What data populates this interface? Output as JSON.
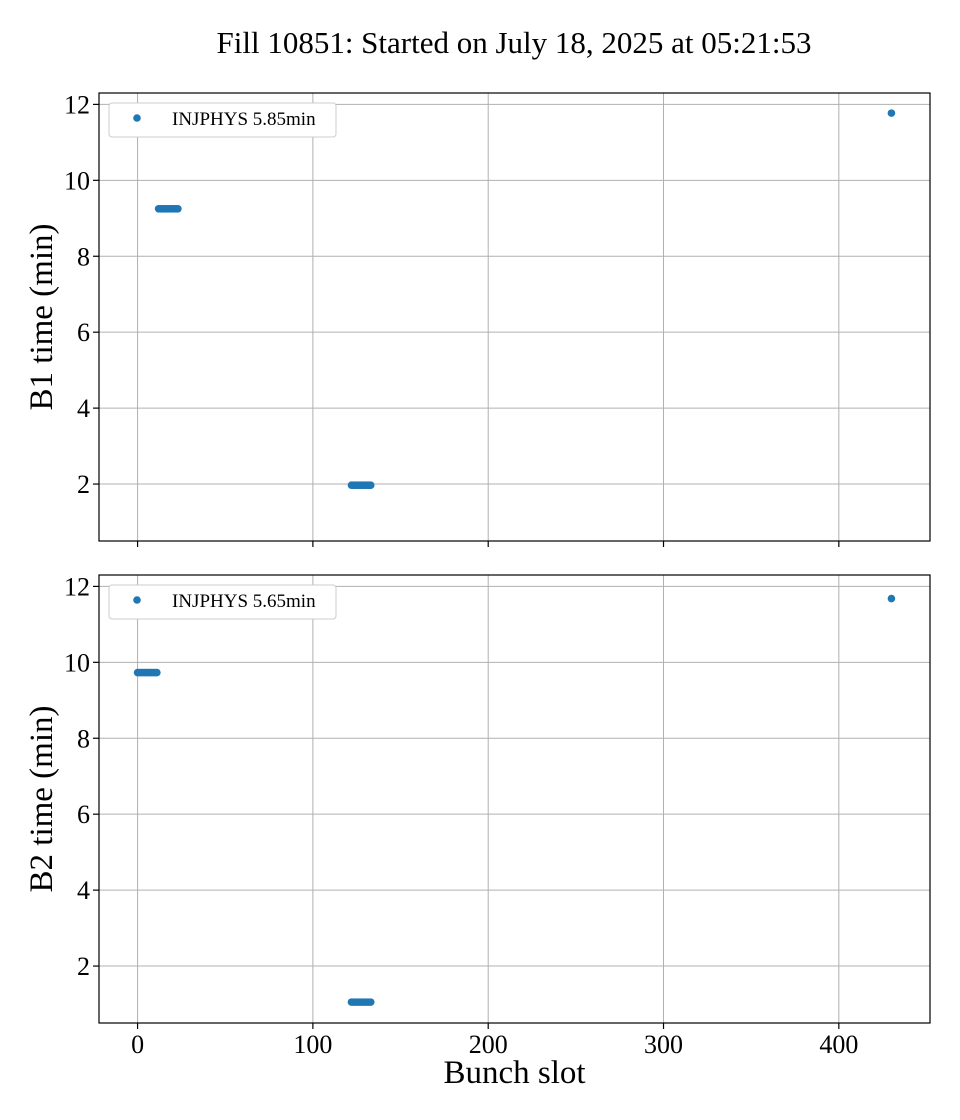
{
  "title": "Fill 10851: Started on July 18, 2025 at 05:21:53",
  "colors": {
    "series": "#1f77b4",
    "grid": "#b0b0b0",
    "frame": "#000000"
  },
  "chart_data": [
    {
      "type": "scatter",
      "ylabel": "B1 time (min)",
      "xlabel": "",
      "xlim": [
        -22,
        452
      ],
      "ylim": [
        0.5,
        12.3
      ],
      "xticks": [
        0,
        100,
        200,
        300,
        400
      ],
      "yticks": [
        2,
        4,
        6,
        8,
        10,
        12
      ],
      "show_xtick_labels": false,
      "grid": true,
      "legend_position": "top-left",
      "series": [
        {
          "name": "INJPHYS 5.85min",
          "color": "#1f77b4",
          "points": [
            [
              12,
              9.25
            ],
            [
              13,
              9.25
            ],
            [
              14,
              9.25
            ],
            [
              15,
              9.25
            ],
            [
              16,
              9.25
            ],
            [
              17,
              9.25
            ],
            [
              18,
              9.25
            ],
            [
              19,
              9.25
            ],
            [
              20,
              9.25
            ],
            [
              21,
              9.25
            ],
            [
              22,
              9.25
            ],
            [
              23,
              9.25
            ],
            [
              122,
              1.97
            ],
            [
              123,
              1.97
            ],
            [
              124,
              1.97
            ],
            [
              125,
              1.97
            ],
            [
              126,
              1.97
            ],
            [
              127,
              1.97
            ],
            [
              128,
              1.97
            ],
            [
              129,
              1.97
            ],
            [
              130,
              1.97
            ],
            [
              131,
              1.97
            ],
            [
              132,
              1.97
            ],
            [
              133,
              1.97
            ],
            [
              430,
              11.77
            ]
          ]
        }
      ]
    },
    {
      "type": "scatter",
      "ylabel": "B2 time (min)",
      "xlabel": "Bunch slot",
      "xlim": [
        -22,
        452
      ],
      "ylim": [
        0.5,
        12.3
      ],
      "xticks": [
        0,
        100,
        200,
        300,
        400
      ],
      "yticks": [
        2,
        4,
        6,
        8,
        10,
        12
      ],
      "show_xtick_labels": true,
      "grid": true,
      "legend_position": "top-left",
      "series": [
        {
          "name": "INJPHYS 5.65min",
          "color": "#1f77b4",
          "points": [
            [
              0,
              9.73
            ],
            [
              1,
              9.73
            ],
            [
              2,
              9.73
            ],
            [
              3,
              9.73
            ],
            [
              4,
              9.73
            ],
            [
              5,
              9.73
            ],
            [
              6,
              9.73
            ],
            [
              7,
              9.73
            ],
            [
              8,
              9.73
            ],
            [
              9,
              9.73
            ],
            [
              10,
              9.73
            ],
            [
              11,
              9.73
            ],
            [
              122,
              1.05
            ],
            [
              123,
              1.05
            ],
            [
              124,
              1.05
            ],
            [
              125,
              1.05
            ],
            [
              126,
              1.05
            ],
            [
              127,
              1.05
            ],
            [
              128,
              1.05
            ],
            [
              129,
              1.05
            ],
            [
              130,
              1.05
            ],
            [
              131,
              1.05
            ],
            [
              132,
              1.05
            ],
            [
              133,
              1.05
            ],
            [
              430,
              11.68
            ]
          ]
        }
      ]
    }
  ]
}
